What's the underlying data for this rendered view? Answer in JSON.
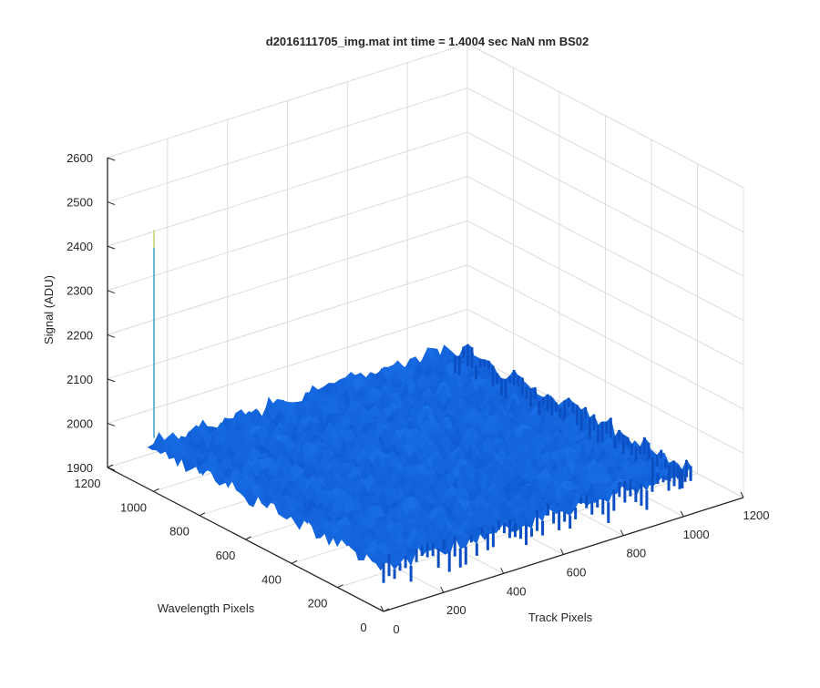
{
  "window": {
    "title": "d2016111705_img.mat int time = 1.4004 sec  NaN nm BS02"
  },
  "chart_data": {
    "type": "surface",
    "title": "d2016111705_img.mat int time = 1.4004 sec  NaN nm BS02",
    "xlabel": "Track Pixels",
    "ylabel": "Wavelength Pixels",
    "zlabel": "Signal (ADU)",
    "xlim": [
      0,
      1200
    ],
    "ylim": [
      0,
      1200
    ],
    "zlim": [
      1900,
      2600
    ],
    "x_ticks": [
      "0",
      "200",
      "400",
      "600",
      "800",
      "1000",
      "1200"
    ],
    "y_ticks": [
      "0",
      "200",
      "400",
      "600",
      "800",
      "1000",
      "1200"
    ],
    "z_ticks": [
      "1900",
      "2000",
      "2100",
      "2200",
      "2300",
      "2400",
      "2500",
      "2600"
    ],
    "grid": true,
    "surface": {
      "x_range": [
        0,
        1024
      ],
      "y_range": [
        0,
        1024
      ],
      "mean_signal": 2000,
      "noise_amplitude": 35,
      "color": "#0a5fdc",
      "spike": {
        "x": 20,
        "y": 1024,
        "z_min": 2010,
        "z_max": 2480
      }
    }
  }
}
